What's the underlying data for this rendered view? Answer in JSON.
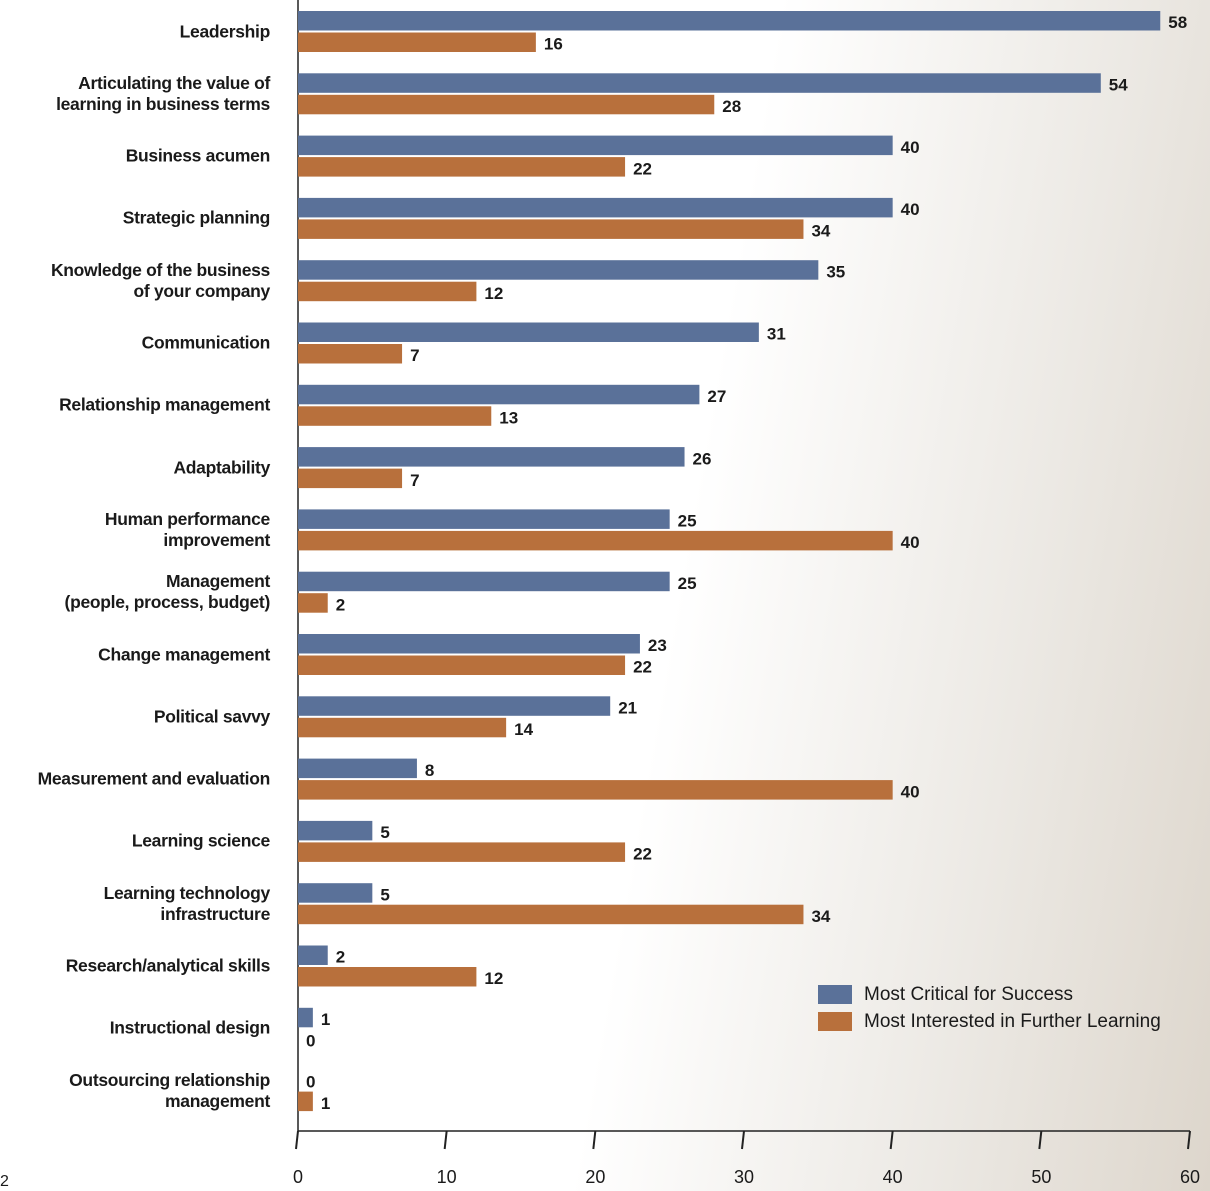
{
  "chart_data": {
    "type": "bar",
    "orientation": "horizontal",
    "categories": [
      "Leadership",
      "Articulating the value of\nlearning in business terms",
      "Business acumen",
      "Strategic planning",
      "Knowledge of the business\nof your company",
      "Communication",
      "Relationship management",
      "Adaptability",
      "Human performance\nimprovement",
      "Management\n(people, process, budget)",
      "Change management",
      "Political savvy",
      "Measurement and evaluation",
      "Learning science",
      "Learning technology\ninfrastructure",
      "Research/analytical skills",
      "Instructional design",
      "Outsourcing relationship\nmanagement"
    ],
    "series": [
      {
        "name": "Most Critical for Success",
        "color": "#5a7199",
        "values": [
          58,
          54,
          40,
          40,
          35,
          31,
          27,
          26,
          25,
          25,
          23,
          21,
          8,
          5,
          5,
          2,
          1,
          0
        ]
      },
      {
        "name": "Most Interested in Further Learning",
        "color": "#b8703c",
        "values": [
          16,
          28,
          22,
          34,
          12,
          7,
          13,
          7,
          40,
          2,
          22,
          14,
          40,
          22,
          34,
          12,
          0,
          1
        ]
      }
    ],
    "xlim": [
      0,
      60
    ],
    "xticks": [
      0,
      10,
      20,
      30,
      40,
      50,
      60
    ],
    "grid": false,
    "legend": "lower right",
    "page_number": "2"
  }
}
